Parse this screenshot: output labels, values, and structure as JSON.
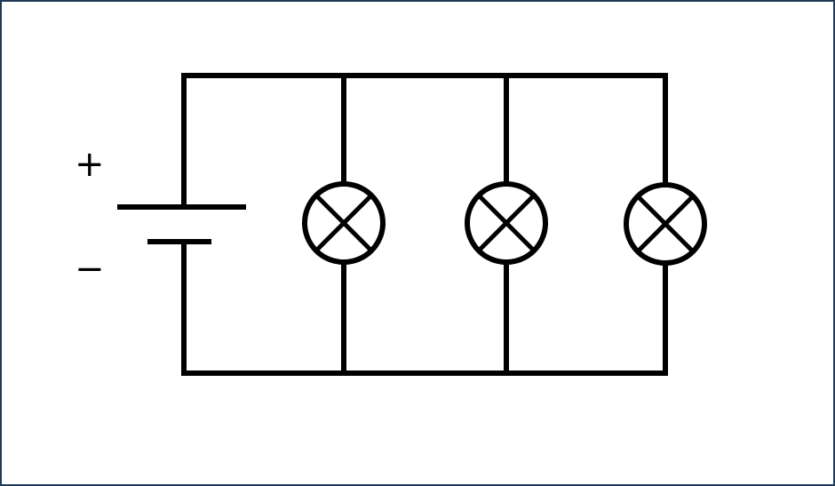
{
  "battery": {
    "positive_label": "+",
    "negative_label": "−"
  },
  "lamps": [
    {
      "id": "lamp-1"
    },
    {
      "id": "lamp-2"
    },
    {
      "id": "lamp-3"
    }
  ],
  "colors": {
    "stroke": "#000000",
    "background": "#ffffff",
    "frame_border": "#1f3b57"
  }
}
